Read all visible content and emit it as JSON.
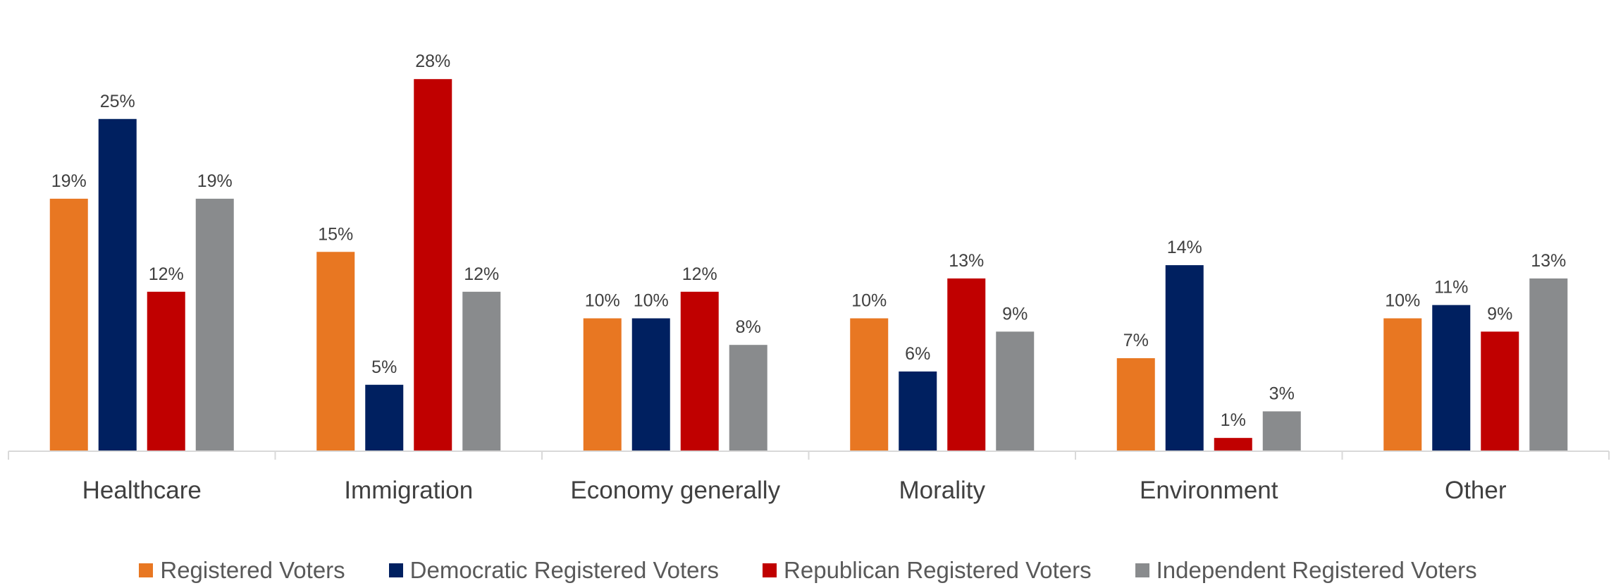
{
  "chart_data": {
    "type": "bar",
    "categories": [
      "Healthcare",
      "Immigration",
      "Economy generally",
      "Morality",
      "Environment",
      "Other"
    ],
    "series": [
      {
        "name": "Registered Voters",
        "color": "#E87722",
        "values": [
          19,
          15,
          10,
          10,
          7,
          10
        ]
      },
      {
        "name": "Democratic Registered Voters",
        "color": "#002060",
        "values": [
          25,
          5,
          10,
          6,
          14,
          11
        ]
      },
      {
        "name": "Republican Registered Voters",
        "color": "#C00000",
        "values": [
          12,
          28,
          12,
          13,
          1,
          9
        ]
      },
      {
        "name": "Independent Registered Voters",
        "color": "#898B8D",
        "values": [
          19,
          12,
          8,
          9,
          3,
          13
        ]
      }
    ],
    "value_suffix": "%",
    "ylim": [
      0,
      30
    ],
    "grid": false,
    "legend_position": "bottom"
  }
}
